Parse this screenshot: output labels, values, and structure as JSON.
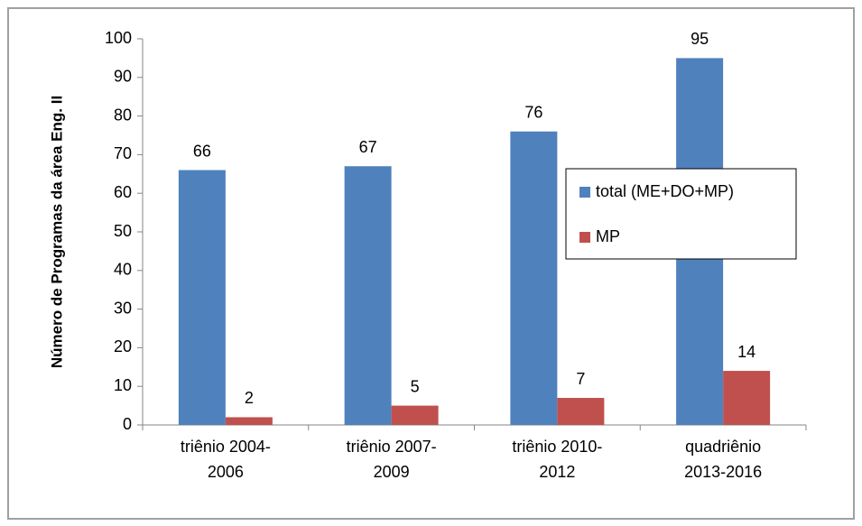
{
  "chart_data": {
    "type": "bar",
    "ylabel": "Número de Programas da área Eng. II",
    "categories": [
      "triênio 2004-2006",
      "triênio 2007-2009",
      "triênio 2010-2012",
      "quadriênio 2013-2016"
    ],
    "series": [
      {
        "name": "total (ME+DO+MP)",
        "color": "#4f81bd",
        "values": [
          66,
          67,
          76,
          95
        ]
      },
      {
        "name": "MP",
        "color": "#c0504d",
        "values": [
          2,
          5,
          7,
          14
        ]
      }
    ],
    "ylim": [
      0,
      100
    ],
    "yticks": [
      0,
      10,
      20,
      30,
      40,
      50,
      60,
      70,
      80,
      90,
      100
    ],
    "grid": false,
    "legend": "right"
  }
}
